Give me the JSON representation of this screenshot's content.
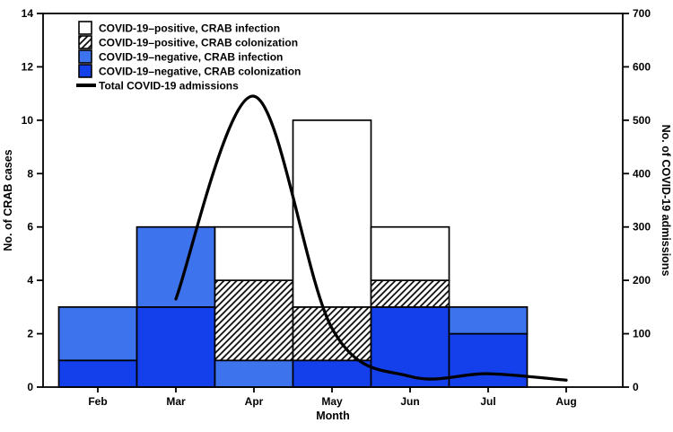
{
  "figure": {
    "background": "#ffffff",
    "axis_color": "#000000"
  },
  "chart_data": {
    "type": "combo-stacked-bar-line",
    "title": "",
    "xlabel": "Month",
    "categories": [
      "Feb",
      "Mar",
      "Apr",
      "May",
      "Jun",
      "Jul",
      "Aug"
    ],
    "left_axis": {
      "label": "No. of CRAB cases",
      "min": 0,
      "max": 14,
      "ticks": [
        0,
        2,
        4,
        6,
        8,
        10,
        12,
        14
      ]
    },
    "right_axis": {
      "label": "No. of COVID-19 admissions",
      "min": 0,
      "max": 700,
      "ticks": [
        0,
        100,
        200,
        300,
        400,
        500,
        600,
        700
      ]
    },
    "grid": "off",
    "legend_position": "upper-left-inside",
    "bar_stack_order_note": "bottom to top as listed",
    "bar_series": [
      {
        "name": "COVID-19–negative, CRAB colonization",
        "style": "solid",
        "color": "#1340EA",
        "values": [
          1,
          3,
          0,
          1,
          3,
          2,
          0
        ]
      },
      {
        "name": "COVID-19–negative, CRAB infection",
        "style": "solid",
        "color": "#3D73EC",
        "values": [
          2,
          3,
          1,
          0,
          0,
          1,
          0
        ]
      },
      {
        "name": "COVID-19–positive, CRAB colonization",
        "style": "hatched",
        "color": "#ffffff",
        "values": [
          0,
          0,
          3,
          2,
          1,
          0,
          0
        ]
      },
      {
        "name": "COVID-19–positive, CRAB infection",
        "style": "solid",
        "color": "#ffffff",
        "values": [
          0,
          0,
          2,
          7,
          2,
          0,
          0
        ]
      }
    ],
    "line_series": {
      "name": "Total COVID-19 admissions",
      "color": "#000000",
      "points": [
        {
          "month": "Mar",
          "value": 165
        },
        {
          "month": "Apr",
          "value": 545
        },
        {
          "month": "May",
          "value": 110
        },
        {
          "month": "Jun",
          "value": 20
        },
        {
          "month": "Jul",
          "value": 25
        },
        {
          "month": "Aug",
          "value": 13
        }
      ]
    },
    "legend": [
      {
        "marker": "box",
        "fill": "#ffffff",
        "label": "COVID-19–positive, CRAB infection"
      },
      {
        "marker": "hatch",
        "fill": "#ffffff",
        "label": "COVID-19–positive, CRAB colonization"
      },
      {
        "marker": "box",
        "fill": "#3D73EC",
        "label": "COVID-19–negative, CRAB infection"
      },
      {
        "marker": "box",
        "fill": "#1340EA",
        "label": "COVID-19–negative, CRAB colonization"
      },
      {
        "marker": "line",
        "fill": "#000000",
        "label": "Total COVID-19 admissions"
      }
    ]
  }
}
